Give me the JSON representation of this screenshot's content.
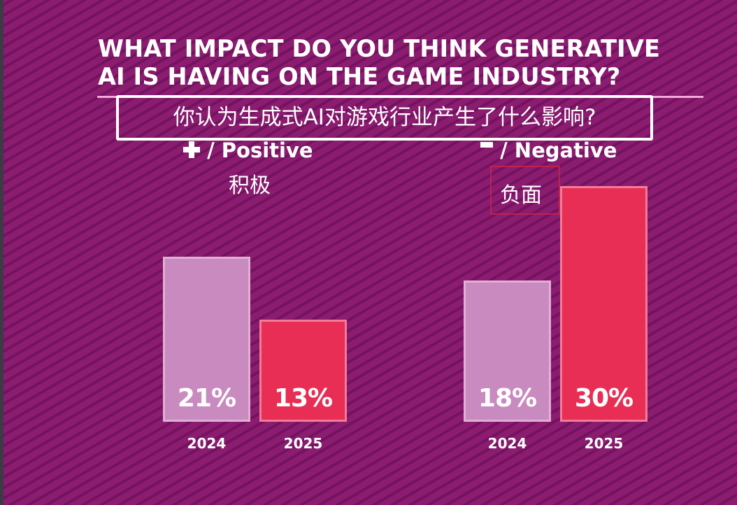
{
  "title": {
    "line1": "WHAT IMPACT DO YOU THINK GENERATIVE",
    "line2": "AI IS HAVING ON THE GAME INDUSTRY?"
  },
  "subtitle_cn": "你认为生成式AI对游戏行业产生了什么影响?",
  "colors": {
    "background": "#8b1c70",
    "bar_2024": "#c98bbf",
    "bar_2025": "#e82e54",
    "divider": "#f3a9da"
  },
  "groups": [
    {
      "icon": "plus-icon",
      "label": "/ Positive",
      "label_cn": "积极"
    },
    {
      "icon": "minus-icon",
      "label": "/ Negative",
      "label_cn": "负面"
    }
  ],
  "chart_data": {
    "type": "bar",
    "title": "WHAT IMPACT DO YOU THINK GENERATIVE AI IS HAVING ON THE GAME INDUSTRY?",
    "subtitle": "你认为生成式AI对游戏行业产生了什么影响?",
    "categories": [
      "Positive",
      "Negative"
    ],
    "category_labels_cn": [
      "积极",
      "负面"
    ],
    "series": [
      {
        "name": "2024",
        "values": [
          21,
          18
        ],
        "labels": [
          "21%",
          "18%"
        ]
      },
      {
        "name": "2025",
        "values": [
          13,
          30
        ],
        "labels": [
          "13%",
          "30%"
        ]
      }
    ],
    "xlabel": "",
    "ylabel": "",
    "ylim": [
      0,
      32
    ],
    "grid": false,
    "legend": "none",
    "unit": "%"
  }
}
